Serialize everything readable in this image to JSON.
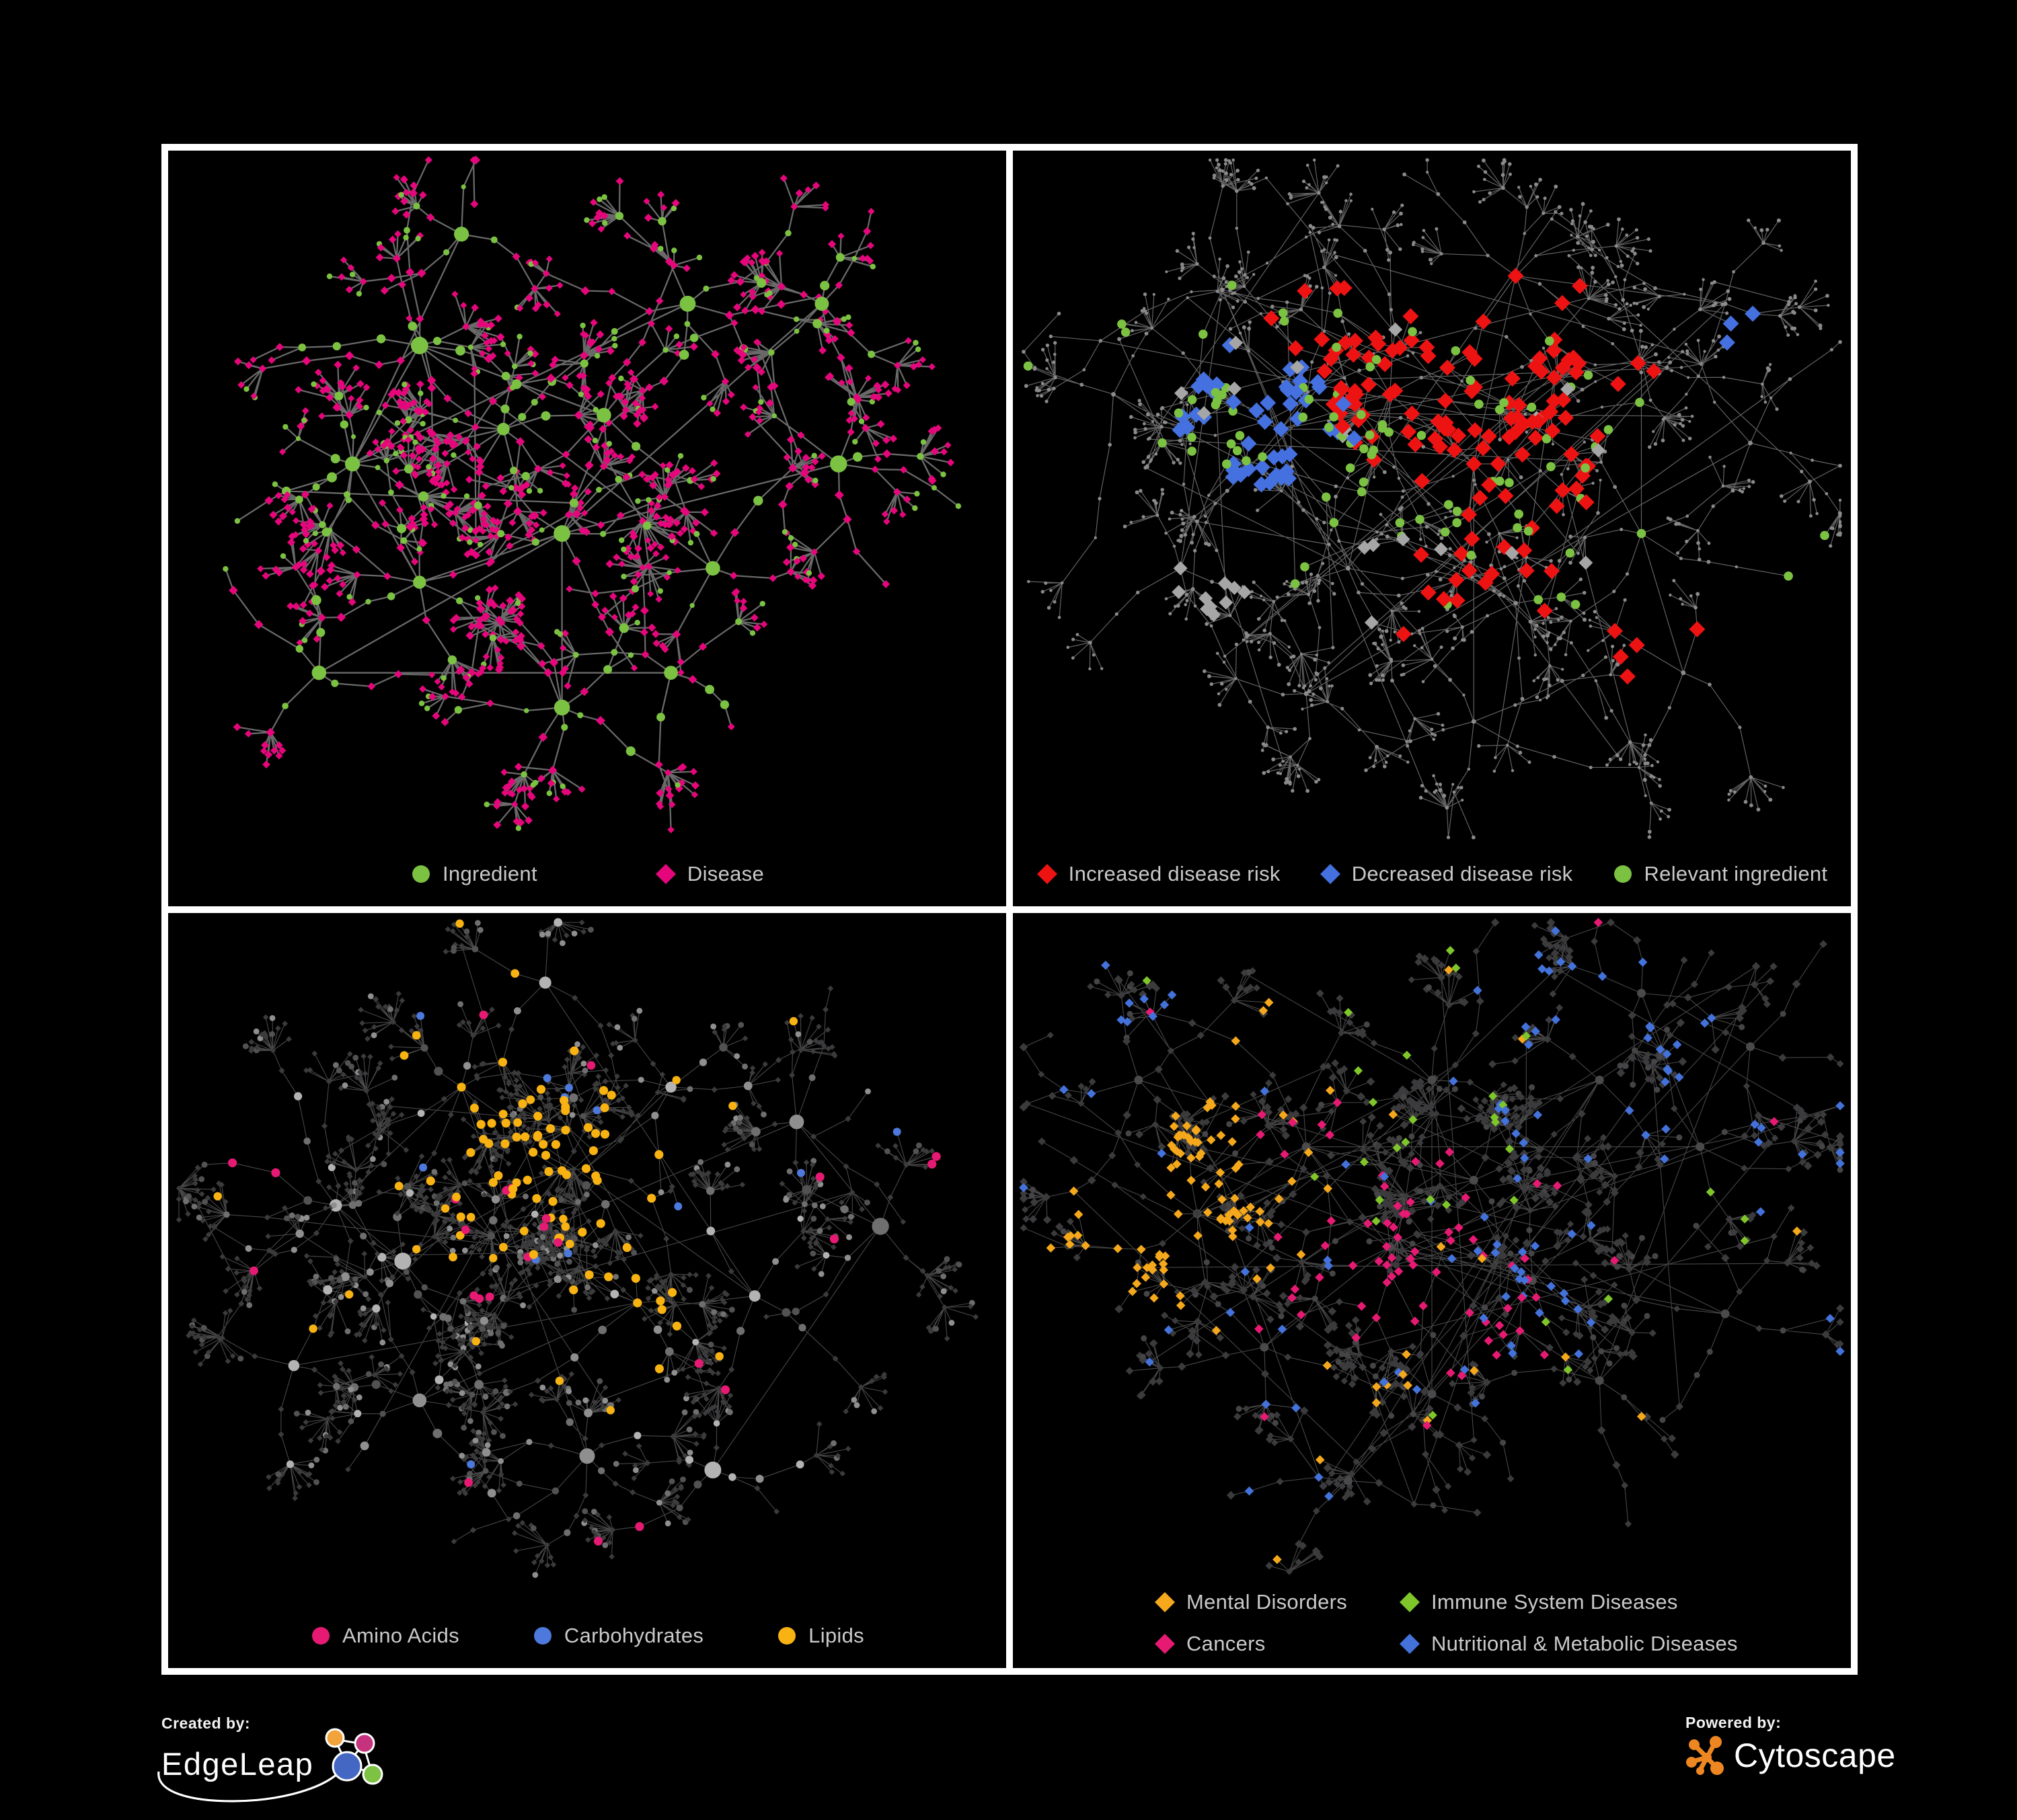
{
  "footer": {
    "created_by_label": "Created by:",
    "created_by_name": "EdgeLeap",
    "powered_by_label": "Powered by:",
    "powered_by_name": "Cytoscape"
  },
  "palette": {
    "panel_background": "#000000",
    "frame_border": "#FFFFFF",
    "legend_text": "#C9C9C9",
    "edge_gray": "#6F6F6F",
    "tiny_node_gray": "#8A8A8A",
    "unselected_diamond_silver": "#A6A6A6",
    "dark_diamond": "#3B3B3D",
    "gray_circle_shades": [
      "#B3B3B3",
      "#8F8F8F",
      "#6F6F6F",
      "#525252"
    ],
    "edgeleap_logo_colors": [
      "#F2A33C",
      "#C5337E",
      "#4467C4",
      "#7DC242"
    ],
    "cytoscape_orange": "#EE8722"
  },
  "panels": [
    {
      "id": "ingredient-disease",
      "legend": [
        {
          "label": "Ingredient",
          "shape": "circle",
          "color": "#7CC242"
        },
        {
          "label": "Disease",
          "shape": "diamond",
          "color": "#E6067C"
        }
      ]
    },
    {
      "id": "disease-risk",
      "legend": [
        {
          "label": "Increased disease risk",
          "shape": "diamond",
          "color": "#EE1313"
        },
        {
          "label": "Decreased disease risk",
          "shape": "diamond",
          "color": "#4470E0"
        },
        {
          "label": "Relevant ingredient",
          "shape": "circle",
          "color": "#7CC242"
        }
      ]
    },
    {
      "id": "nutrient-classes",
      "legend": [
        {
          "label": "Amino Acids",
          "shape": "circle",
          "color": "#E61A73"
        },
        {
          "label": "Carbohydrates",
          "shape": "circle",
          "color": "#4D79DC"
        },
        {
          "label": "Lipids",
          "shape": "circle",
          "color": "#F8B211"
        }
      ]
    },
    {
      "id": "disease-categories",
      "legend": [
        {
          "label": "Mental Disorders",
          "shape": "diamond",
          "color": "#F5A81B"
        },
        {
          "label": "Immune System Diseases",
          "shape": "diamond",
          "color": "#7FC62A"
        },
        {
          "label": "Cancers",
          "shape": "diamond",
          "color": "#E61A73"
        },
        {
          "label": "Nutritional & Metabolic Diseases",
          "shape": "diamond",
          "color": "#4372DB"
        }
      ]
    }
  ]
}
